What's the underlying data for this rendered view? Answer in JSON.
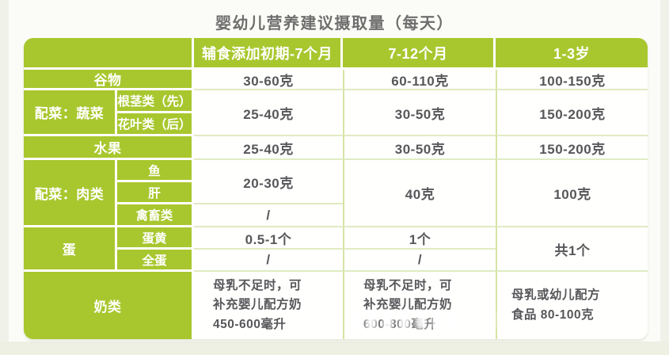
{
  "page": {
    "title": "婴幼儿营养建议摄取量（每天）"
  },
  "table": {
    "columns": {
      "stage1": "辅食添加初期-7个月",
      "stage2": "7-12个月",
      "stage3": "1-3岁"
    },
    "grain": {
      "label": "谷物",
      "stage1": "30-60克",
      "stage2": "60-110克",
      "stage3": "100-150克"
    },
    "vegetable": {
      "group": "配菜：蔬菜",
      "root": "根茎类（先）",
      "leaf": "花叶类（后）",
      "stage1": "25-40克",
      "stage2": "30-50克",
      "stage3": "150-200克"
    },
    "fruit": {
      "label": "水果",
      "stage1": "25-40克",
      "stage2": "30-50克",
      "stage3": "150-200克"
    },
    "meat": {
      "group": "配菜：肉类",
      "fish": "鱼",
      "liver": "肝",
      "poultry": "禽畜类",
      "fish_liver_stage1": "20-30克",
      "poultry_stage1": "/",
      "stage2": "40克",
      "stage3": "100克"
    },
    "egg": {
      "group": "蛋",
      "yolk": "蛋黄",
      "whole": "全蛋",
      "yolk_stage1": "0.5-1个",
      "yolk_stage2": "1个",
      "whole_stage1": "/",
      "whole_stage2": "/",
      "stage3": "共1个"
    },
    "milk": {
      "label": "奶类",
      "stage1": "母乳不足时，可\n补充婴儿配方奶\n450-600毫升",
      "stage2": "母乳不足时，可\n补充婴儿配方奶\n600-800毫升",
      "stage3": "母乳或幼儿配方\n食品 80-100克"
    }
  },
  "colors": {
    "green": "#a8c72e",
    "data_text": "#57575b",
    "divider_green": "#d5e4a4",
    "background": "#fbfcf7"
  },
  "chart_data": {
    "type": "table",
    "title": "婴幼儿营养建议摄取量（每天）",
    "columns": [
      "",
      "辅食添加初期-7个月",
      "7-12个月",
      "1-3岁"
    ],
    "rows": [
      [
        "谷物",
        "30-60克",
        "60-110克",
        "100-150克"
      ],
      [
        "配菜：蔬菜｜根茎类（先）",
        "25-40克",
        "30-50克",
        "150-200克"
      ],
      [
        "配菜：蔬菜｜花叶类（后）",
        "25-40克",
        "30-50克",
        "150-200克"
      ],
      [
        "水果",
        "25-40克",
        "30-50克",
        "150-200克"
      ],
      [
        "配菜：肉类｜鱼",
        "20-30克",
        "40克",
        "100克"
      ],
      [
        "配菜：肉类｜肝",
        "20-30克",
        "40克",
        "100克"
      ],
      [
        "配菜：肉类｜禽畜类",
        "/",
        "40克",
        "100克"
      ],
      [
        "蛋｜蛋黄",
        "0.5-1个",
        "1个",
        "共1个"
      ],
      [
        "蛋｜全蛋",
        "/",
        "/",
        "共1个"
      ],
      [
        "奶类",
        "母乳不足时，可补充婴儿配方奶450-600毫升",
        "母乳不足时，可补充婴儿配方奶600-800毫升",
        "母乳或幼儿配方食品 80-100克"
      ]
    ]
  }
}
